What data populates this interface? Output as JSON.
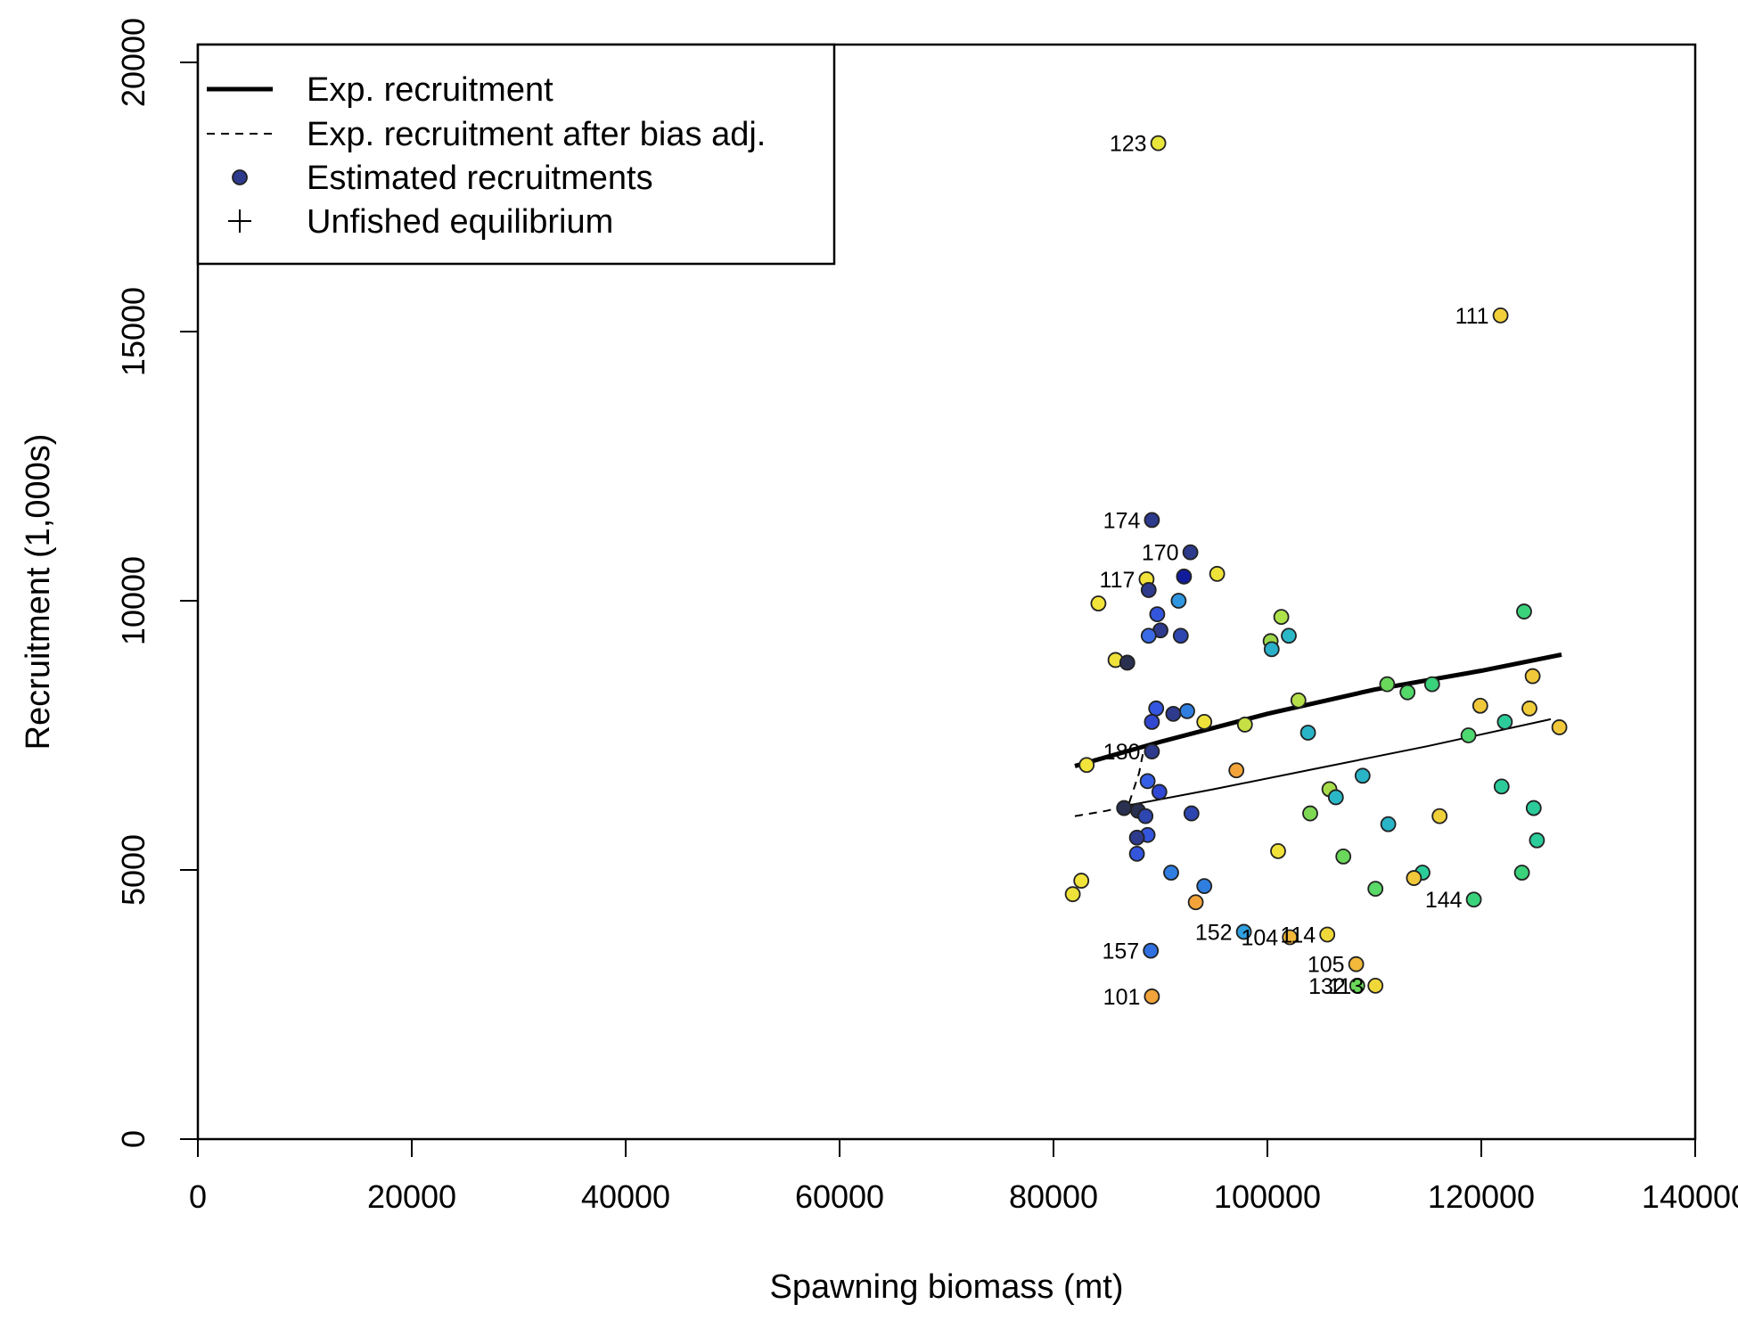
{
  "chart_data": {
    "type": "scatter",
    "xlabel": "Spawning biomass (mt)",
    "ylabel": "Recruitment (1,000s)",
    "xlim": [
      0,
      140000
    ],
    "ylim": [
      0,
      20000
    ],
    "x_ticks": [
      "0",
      "20000",
      "40000",
      "60000",
      "80000",
      "100000",
      "120000",
      "140000"
    ],
    "y_ticks": [
      "0",
      "5000",
      "10000",
      "15000",
      "20000"
    ],
    "legend": {
      "position": "top-left",
      "entries": [
        {
          "label": "Exp. recruitment",
          "symbol": "thick-line"
        },
        {
          "label": "Exp. recruitment after bias adj.",
          "symbol": "dashed-line"
        },
        {
          "label": "Estimated recruitments",
          "symbol": "filled-circle",
          "color": "#2e3a8c"
        },
        {
          "label": "Unfished equilibrium",
          "symbol": "plus"
        }
      ]
    },
    "expected_recruitment": {
      "x": [
        82000,
        90000,
        100000,
        110000,
        120000,
        127500
      ],
      "y": [
        6930,
        7380,
        7900,
        8350,
        8700,
        9000
      ]
    },
    "expected_recruitment_bias_adj": {
      "solid": {
        "x": [
          87000,
          95000,
          105000,
          115000,
          126500
        ],
        "y": [
          6200,
          6500,
          6900,
          7300,
          7800
        ]
      },
      "dashed": {
        "x": [
          82000,
          85000,
          87000,
          88000,
          88500
        ],
        "y": [
          6000,
          6100,
          6200,
          6800,
          7300
        ]
      }
    },
    "points": [
      {
        "x": 89800,
        "y": 18500,
        "color": "#e8e63a",
        "label": "123"
      },
      {
        "x": 121800,
        "y": 15300,
        "color": "#f2d03a",
        "label": "111"
      },
      {
        "x": 89200,
        "y": 11500,
        "color": "#2e3a8c",
        "label": "174"
      },
      {
        "x": 92800,
        "y": 10900,
        "color": "#2e3a8c",
        "label": "170"
      },
      {
        "x": 92200,
        "y": 10450,
        "color": "#101c9c"
      },
      {
        "x": 88700,
        "y": 10400,
        "color": "#f0e23a",
        "label": "117"
      },
      {
        "x": 95300,
        "y": 10500,
        "color": "#eee23a"
      },
      {
        "x": 88900,
        "y": 10200,
        "color": "#2e3a8c"
      },
      {
        "x": 91700,
        "y": 10000,
        "color": "#2f96e0"
      },
      {
        "x": 84200,
        "y": 9950,
        "color": "#f2e43a"
      },
      {
        "x": 89700,
        "y": 9750,
        "color": "#3356dc"
      },
      {
        "x": 90000,
        "y": 9450,
        "color": "#2e3a8c"
      },
      {
        "x": 88900,
        "y": 9350,
        "color": "#3a6ae6"
      },
      {
        "x": 91900,
        "y": 9350,
        "color": "#2e46b0"
      },
      {
        "x": 101300,
        "y": 9700,
        "color": "#aee24a"
      },
      {
        "x": 100300,
        "y": 9250,
        "color": "#9ed84a"
      },
      {
        "x": 102000,
        "y": 9350,
        "color": "#2ab8c8"
      },
      {
        "x": 100400,
        "y": 9100,
        "color": "#2ab0c8"
      },
      {
        "x": 124000,
        "y": 9800,
        "color": "#3ad27a"
      },
      {
        "x": 85800,
        "y": 8900,
        "color": "#eee23a"
      },
      {
        "x": 86900,
        "y": 8850,
        "color": "#2a3050"
      },
      {
        "x": 124800,
        "y": 8600,
        "color": "#f0c83a"
      },
      {
        "x": 111200,
        "y": 8450,
        "color": "#6ad85a"
      },
      {
        "x": 115400,
        "y": 8450,
        "color": "#3ad27a"
      },
      {
        "x": 113100,
        "y": 8300,
        "color": "#54d86a"
      },
      {
        "x": 102900,
        "y": 8150,
        "color": "#b6e04a"
      },
      {
        "x": 119900,
        "y": 8050,
        "color": "#f0c83a"
      },
      {
        "x": 124500,
        "y": 8000,
        "color": "#f0cc3a"
      },
      {
        "x": 89600,
        "y": 8000,
        "color": "#3456e0"
      },
      {
        "x": 92500,
        "y": 7950,
        "color": "#2f7ee0"
      },
      {
        "x": 91200,
        "y": 7900,
        "color": "#2e3a8c"
      },
      {
        "x": 89200,
        "y": 7750,
        "color": "#3348d0"
      },
      {
        "x": 94100,
        "y": 7750,
        "color": "#eee23a"
      },
      {
        "x": 97900,
        "y": 7700,
        "color": "#c6e043"
      },
      {
        "x": 122200,
        "y": 7750,
        "color": "#2ccc9a"
      },
      {
        "x": 127300,
        "y": 7650,
        "color": "#f0c83a"
      },
      {
        "x": 103800,
        "y": 7550,
        "color": "#2ab4c8"
      },
      {
        "x": 118800,
        "y": 7500,
        "color": "#4ed870"
      },
      {
        "x": 89200,
        "y": 7200,
        "color": "#2e3a8c",
        "label": "180"
      },
      {
        "x": 83100,
        "y": 6950,
        "color": "#f2e43a"
      },
      {
        "x": 97100,
        "y": 6850,
        "color": "#f2a43a"
      },
      {
        "x": 108900,
        "y": 6750,
        "color": "#2ab4c8"
      },
      {
        "x": 88800,
        "y": 6650,
        "color": "#3560e6"
      },
      {
        "x": 121900,
        "y": 6550,
        "color": "#2ccc9a"
      },
      {
        "x": 105800,
        "y": 6500,
        "color": "#a6dc4a"
      },
      {
        "x": 89900,
        "y": 6450,
        "color": "#3048d4"
      },
      {
        "x": 106400,
        "y": 6350,
        "color": "#2ab8c8"
      },
      {
        "x": 86600,
        "y": 6150,
        "color": "#2a3050"
      },
      {
        "x": 87900,
        "y": 6100,
        "color": "#2a3050"
      },
      {
        "x": 124900,
        "y": 6150,
        "color": "#2ccc9a"
      },
      {
        "x": 104000,
        "y": 6050,
        "color": "#7ed854"
      },
      {
        "x": 92900,
        "y": 6050,
        "color": "#2e46b0"
      },
      {
        "x": 88600,
        "y": 6000,
        "color": "#2e46b0"
      },
      {
        "x": 116100,
        "y": 6000,
        "color": "#f0d03a"
      },
      {
        "x": 111300,
        "y": 5850,
        "color": "#2ab4c8"
      },
      {
        "x": 88800,
        "y": 5650,
        "color": "#3356dc"
      },
      {
        "x": 87800,
        "y": 5600,
        "color": "#2e3a8c"
      },
      {
        "x": 125200,
        "y": 5550,
        "color": "#2ccc9a"
      },
      {
        "x": 101000,
        "y": 5350,
        "color": "#f0e23a"
      },
      {
        "x": 87800,
        "y": 5300,
        "color": "#3356dc"
      },
      {
        "x": 107100,
        "y": 5250,
        "color": "#6ad85a"
      },
      {
        "x": 91000,
        "y": 4950,
        "color": "#2f7ee0"
      },
      {
        "x": 114500,
        "y": 4950,
        "color": "#2ccc9a"
      },
      {
        "x": 123800,
        "y": 4950,
        "color": "#3ad27a"
      },
      {
        "x": 113700,
        "y": 4850,
        "color": "#f0c83a"
      },
      {
        "x": 82600,
        "y": 4800,
        "color": "#f2e43a"
      },
      {
        "x": 94100,
        "y": 4700,
        "color": "#2f7ee0"
      },
      {
        "x": 110100,
        "y": 4650,
        "color": "#5ad868"
      },
      {
        "x": 81800,
        "y": 4550,
        "color": "#eee23a"
      },
      {
        "x": 119300,
        "y": 4450,
        "color": "#3ad27a",
        "label": "144"
      },
      {
        "x": 93300,
        "y": 4400,
        "color": "#f2a43a"
      },
      {
        "x": 97800,
        "y": 3850,
        "color": "#2fa0e0",
        "label": "152"
      },
      {
        "x": 102100,
        "y": 3750,
        "color": "#f2b83a",
        "label": "104"
      },
      {
        "x": 105600,
        "y": 3800,
        "color": "#f0d83a",
        "label": "114"
      },
      {
        "x": 89100,
        "y": 3500,
        "color": "#3070e0",
        "label": "157"
      },
      {
        "x": 108300,
        "y": 3250,
        "color": "#f2b83a",
        "label": "105"
      },
      {
        "x": 108400,
        "y": 2850,
        "color": "#6ad85a",
        "label": "132"
      },
      {
        "x": 110100,
        "y": 2850,
        "color": "#f0d83a",
        "label": "113"
      },
      {
        "x": 89200,
        "y": 2650,
        "color": "#f2a43a",
        "label": "101"
      }
    ]
  }
}
